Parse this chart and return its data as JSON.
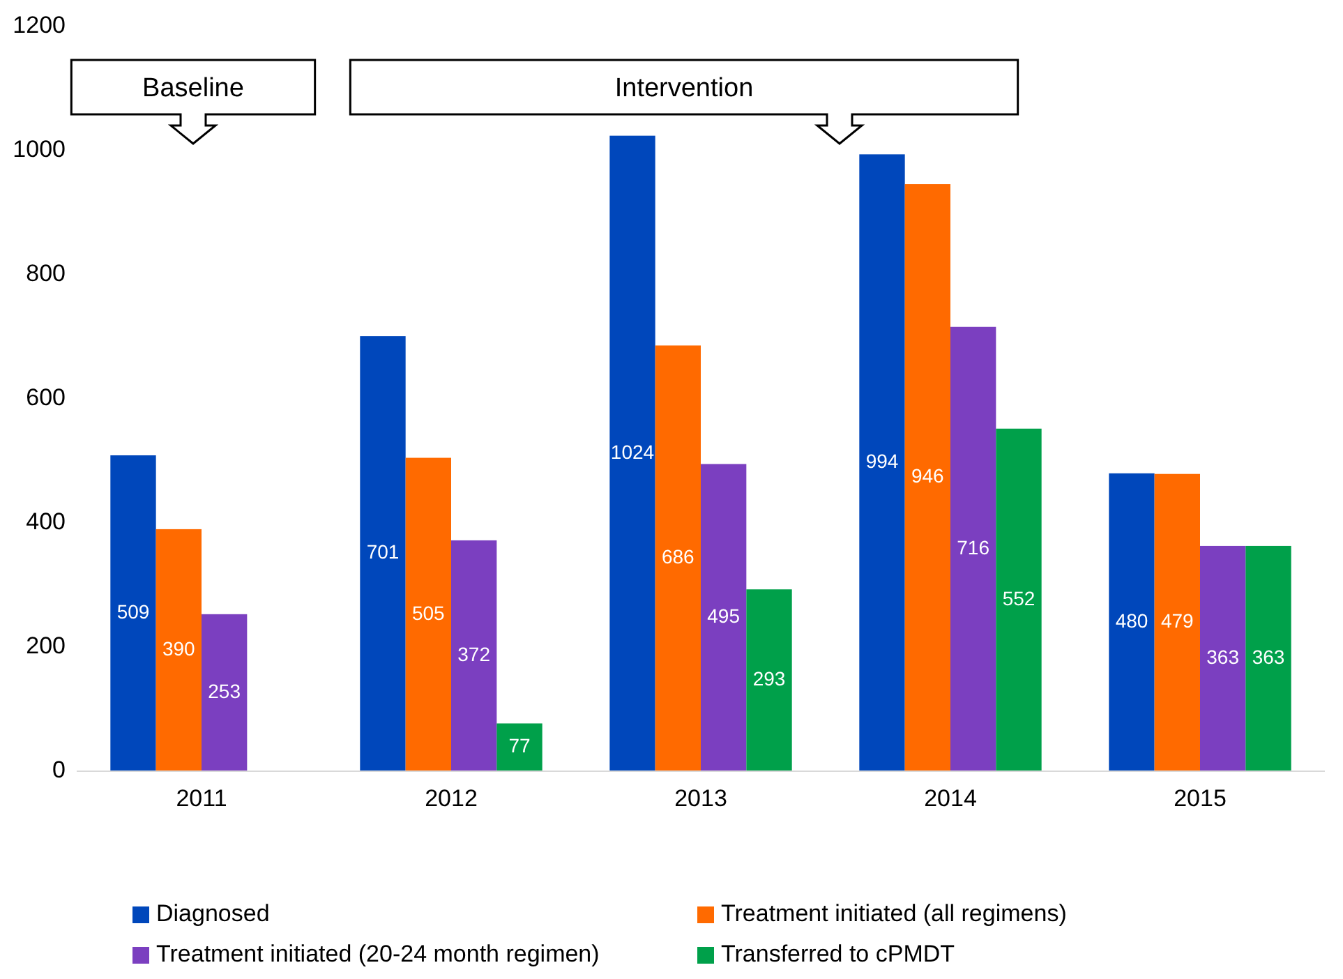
{
  "chart_data": {
    "type": "bar",
    "categories": [
      "2011",
      "2012",
      "2013",
      "2014",
      "2015"
    ],
    "series": [
      {
        "name": "Diagnosed",
        "color": "#0047bb",
        "values": [
          509,
          701,
          1024,
          994,
          480
        ]
      },
      {
        "name": "Treatment initiated (all regimens)",
        "color": "#ff6a00",
        "values": [
          390,
          505,
          686,
          946,
          479
        ]
      },
      {
        "name": "Treatment initiated (20-24 month regimen)",
        "color": "#7b3fc0",
        "values": [
          253,
          372,
          495,
          716,
          363
        ]
      },
      {
        "name": "Transferred to cPMDT",
        "color": "#00a04a",
        "values": [
          null,
          77,
          293,
          552,
          363
        ]
      }
    ],
    "ylim": [
      0,
      1200
    ],
    "yticks": [
      0,
      200,
      400,
      600,
      800,
      1000,
      1200
    ],
    "grid": false,
    "legend": "bottom",
    "data_labels": true,
    "annotations": [
      "Baseline",
      "Intervention"
    ]
  }
}
